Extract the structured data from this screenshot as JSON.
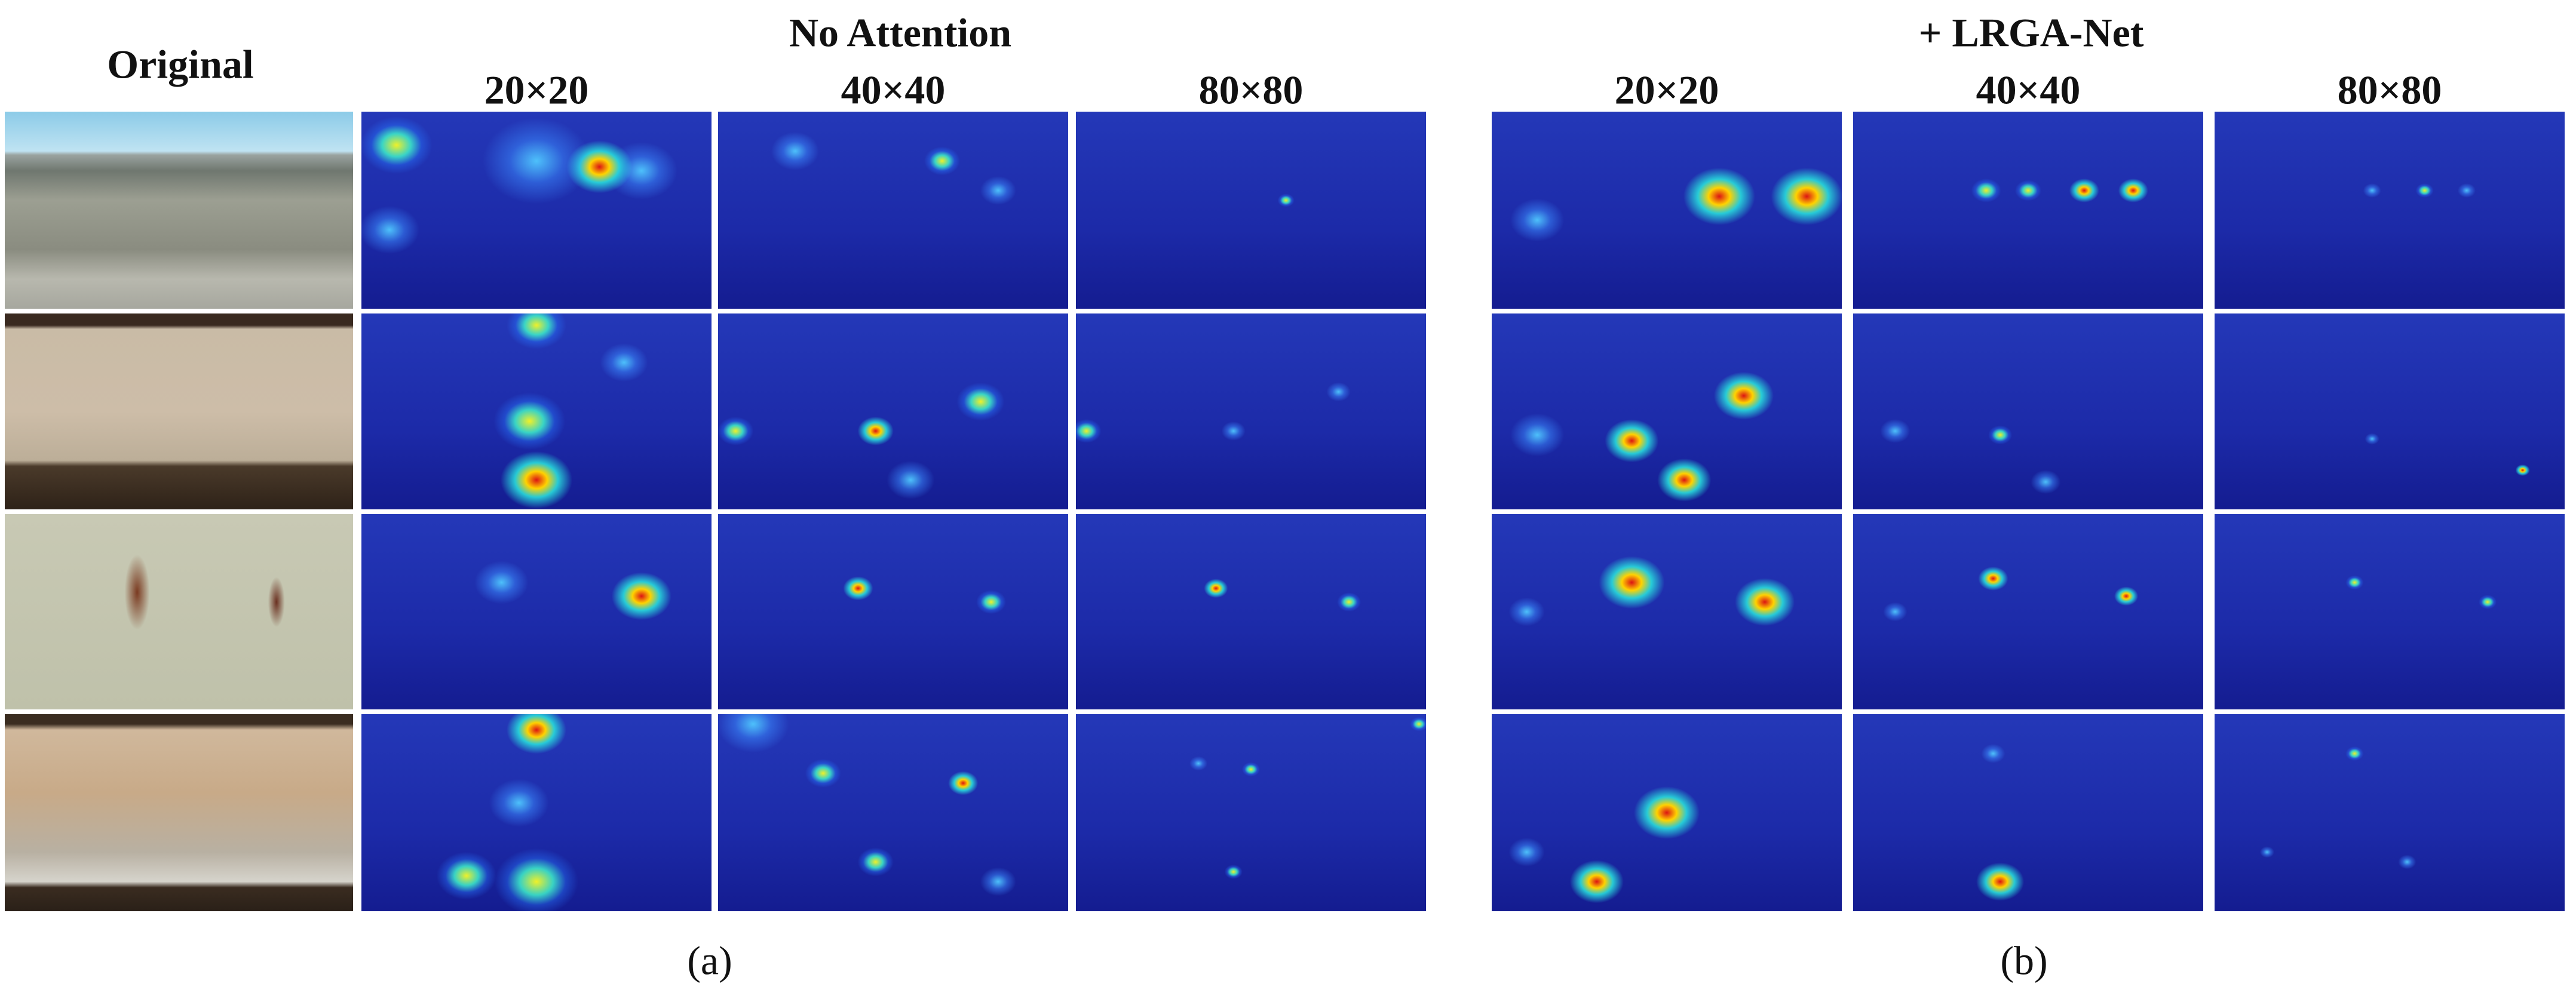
{
  "header": {
    "original": "Original",
    "panels": [
      {
        "title": "No Attention",
        "columns": [
          "20×20",
          "40×40",
          "80×80"
        ],
        "caption": "(a)"
      },
      {
        "title": "+ LRGA-Net",
        "columns": [
          "20×20",
          "40×40",
          "80×80"
        ],
        "caption": "(b)"
      }
    ]
  }
}
